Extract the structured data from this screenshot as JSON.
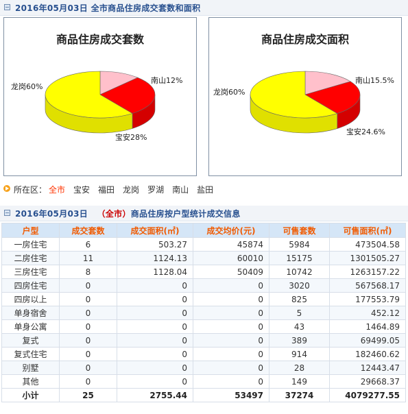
{
  "header1": {
    "title": "2016年05月03日 全市商品住房成交套数和面积"
  },
  "charts": [
    {
      "title": "商品住房成交套数",
      "labels": {
        "longgang": "龙岗60%",
        "nanshan": "南山12%",
        "baoan": "宝安28%"
      }
    },
    {
      "title": "商品住房成交面积",
      "labels": {
        "longgang": "龙岗60%",
        "nanshan": "南山15.5%",
        "baoan": "宝安24.6%"
      }
    }
  ],
  "chart_data": [
    {
      "type": "pie",
      "title": "商品住房成交套数",
      "slices": [
        {
          "name": "龙岗",
          "value": 60,
          "color": "#ffff00"
        },
        {
          "name": "南山",
          "value": 12,
          "color": "#ffc0cb"
        },
        {
          "name": "宝安",
          "value": 28,
          "color": "#ff0000"
        }
      ]
    },
    {
      "type": "pie",
      "title": "商品住房成交面积",
      "slices": [
        {
          "name": "龙岗",
          "value": 60,
          "color": "#ffff00"
        },
        {
          "name": "南山",
          "value": 15.5,
          "color": "#ffc0cb"
        },
        {
          "name": "宝安",
          "value": 24.6,
          "color": "#ff0000"
        }
      ]
    }
  ],
  "district_bar": {
    "label": "所在区：",
    "items": [
      "全市",
      "宝安",
      "福田",
      "龙岗",
      "罗湖",
      "南山",
      "盐田"
    ],
    "active_index": 0
  },
  "header2": {
    "date": "2016年05月03日",
    "scope": "（全市）",
    "title": "商品住房按户型统计成交信息"
  },
  "table": {
    "columns": [
      "户型",
      "成交套数",
      "成交面积(㎡)",
      "成交均价(元)",
      "可售套数",
      "可售面积(㎡)"
    ],
    "rows": [
      [
        "一房住宅",
        "6",
        "503.27",
        "45874",
        "5984",
        "473504.58"
      ],
      [
        "二房住宅",
        "11",
        "1124.13",
        "60010",
        "15175",
        "1301505.27"
      ],
      [
        "三房住宅",
        "8",
        "1128.04",
        "50409",
        "10742",
        "1263157.22"
      ],
      [
        "四房住宅",
        "0",
        "0",
        "0",
        "3020",
        "567568.17"
      ],
      [
        "四房以上",
        "0",
        "0",
        "0",
        "825",
        "177553.79"
      ],
      [
        "单身宿舍",
        "0",
        "0",
        "0",
        "5",
        "452.12"
      ],
      [
        "单身公寓",
        "0",
        "0",
        "0",
        "43",
        "1464.89"
      ],
      [
        "复式",
        "0",
        "0",
        "0",
        "389",
        "69499.05"
      ],
      [
        "复式住宅",
        "0",
        "0",
        "0",
        "914",
        "182460.62"
      ],
      [
        "别墅",
        "0",
        "0",
        "0",
        "28",
        "12443.47"
      ],
      [
        "其他",
        "0",
        "0",
        "0",
        "149",
        "29668.37"
      ]
    ],
    "total": [
      "小计",
      "25",
      "2755.44",
      "53497",
      "37274",
      "4079277.55"
    ]
  },
  "colors": {
    "header_text": "#28508f",
    "highlight": "#cc0000",
    "th_bg": "#d5e6f7",
    "th_text": "#f05a00",
    "active_link": "#ff3300"
  }
}
